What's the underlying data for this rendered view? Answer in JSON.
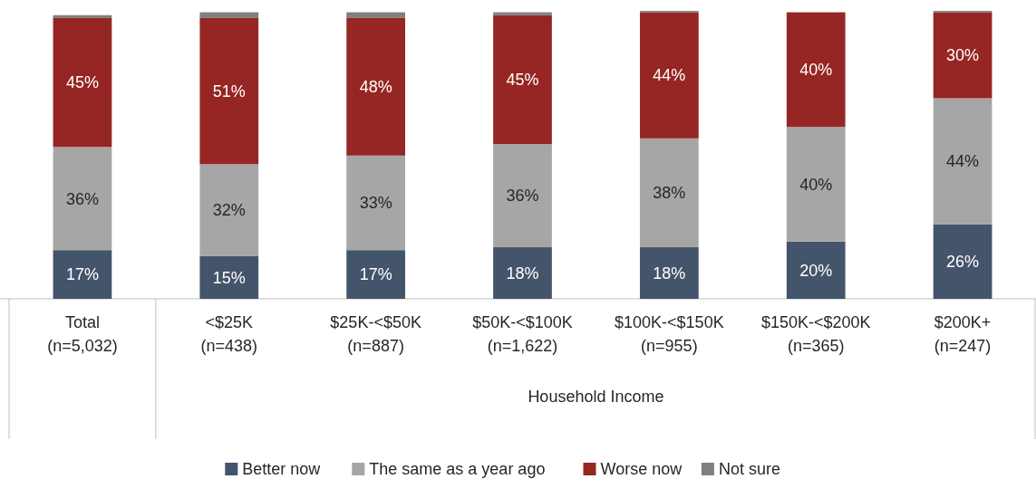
{
  "chart_data": {
    "type": "bar",
    "stacked": true,
    "xlabel": "Household Income",
    "categories": [
      "Total (n=5,032)",
      "<$25K (n=438)",
      "$25K-<$50K (n=887)",
      "$50K-<$100K (n=1,622)",
      "$100K-<$150K (n=955)",
      "$150K-<$200K (n=365)",
      "$200K+ (n=247)"
    ],
    "series": [
      {
        "name": "Better now",
        "color": "#44546a",
        "values": [
          17,
          15,
          17,
          18,
          18,
          20,
          26
        ],
        "value_labels": [
          "17%",
          "15%",
          "17%",
          "18%",
          "18%",
          "20%",
          "26%"
        ]
      },
      {
        "name": "The same as a year ago",
        "color": "#a6a6a6",
        "values": [
          36,
          32,
          33,
          36,
          38,
          40,
          44
        ],
        "value_labels": [
          "36%",
          "32%",
          "33%",
          "36%",
          "38%",
          "40%",
          "44%"
        ]
      },
      {
        "name": "Worse now",
        "color": "#962623",
        "values": [
          45,
          51,
          48,
          45,
          44,
          40,
          30
        ],
        "value_labels": [
          "45%",
          "51%",
          "48%",
          "45%",
          "44%",
          "40%",
          "30%"
        ]
      },
      {
        "name": "Not sure",
        "color": "#7f7f7f",
        "values": [
          1,
          2,
          2,
          1,
          0.5,
          0,
          0.5
        ]
      }
    ],
    "legend": "bottom"
  }
}
